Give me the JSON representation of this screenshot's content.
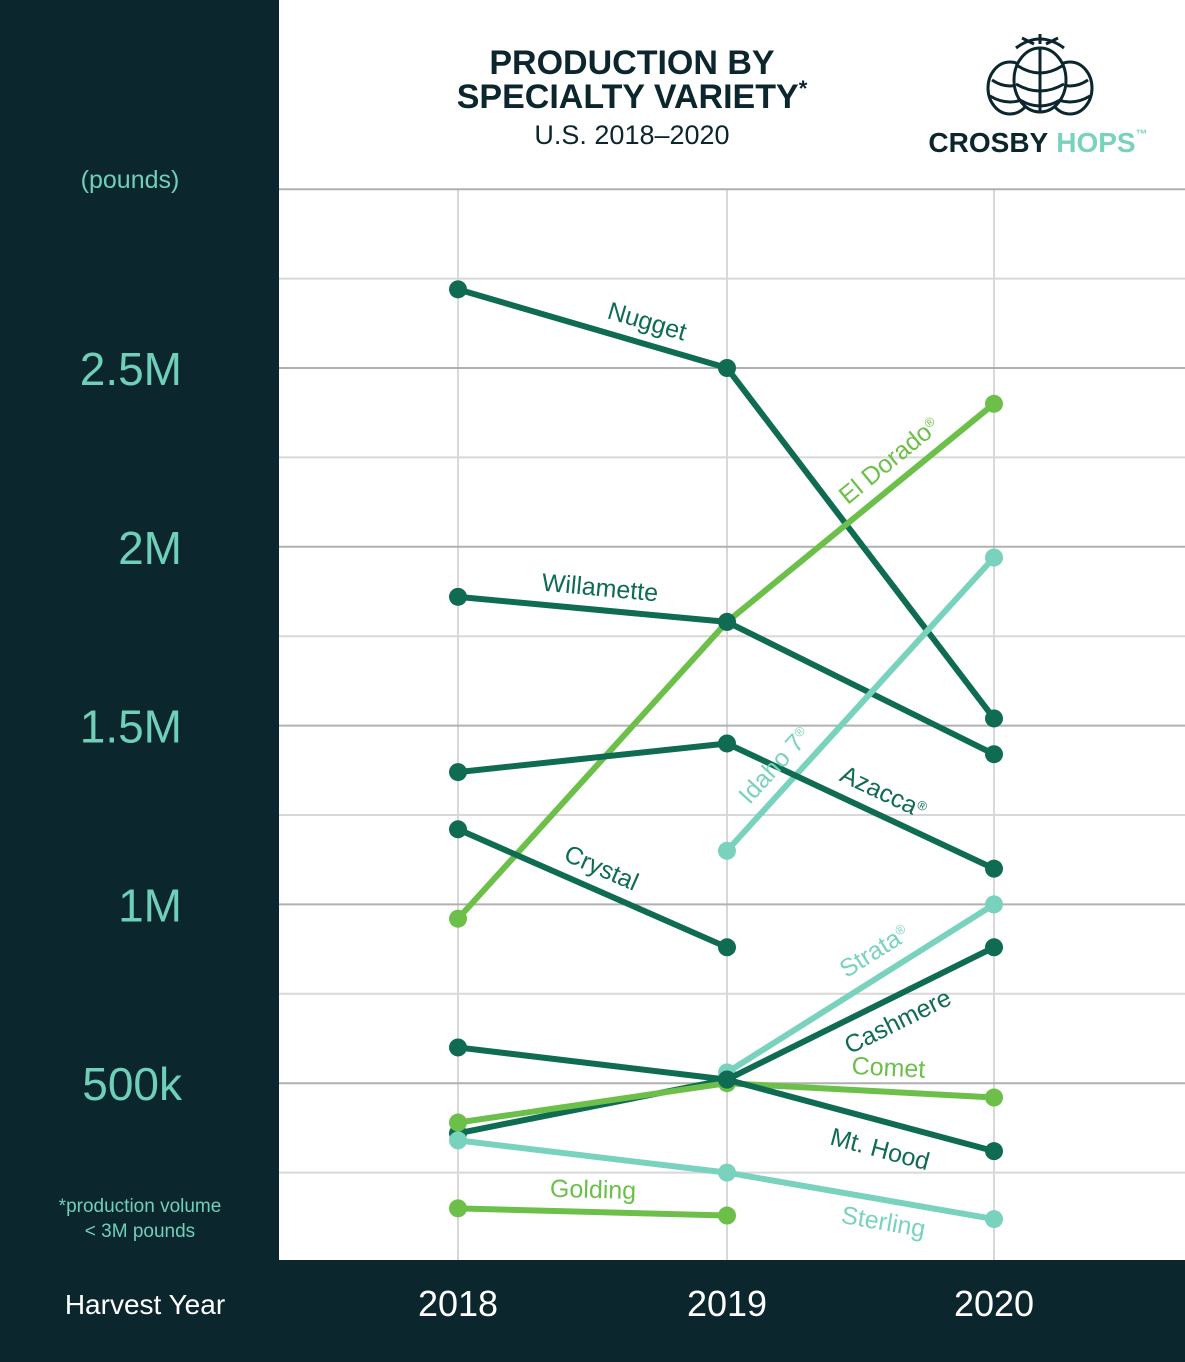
{
  "title_line1": "PRODUCTION BY",
  "title_line2": "SPECIALTY VARIETY",
  "title_asterisk": "*",
  "subtitle": "U.S. 2018–2020",
  "logo": {
    "word1": "CROSBY",
    "word2": "HOPS",
    "tm": "™",
    "icon": "hop-cones-icon"
  },
  "footnote_line1": "*production volume",
  "footnote_line2": "< 3M pounds",
  "colors": {
    "panel": "#0b262d",
    "axis_text": "#6fcfb8",
    "dark_green": "#0f6b52",
    "light_green": "#6cc04a",
    "teal": "#79d2be",
    "grid": "#d8d8d8",
    "major_grid": "#b0b0b0"
  },
  "chart_data": {
    "type": "line",
    "ylabel": "(pounds)",
    "xlabel": "Harvest Year",
    "x": [
      "2018",
      "2019",
      "2020"
    ],
    "ylim": [
      0,
      3000000
    ],
    "y_ticks": [
      {
        "value": 500000,
        "label": "500k"
      },
      {
        "value": 1000000,
        "label": "1M"
      },
      {
        "value": 1500000,
        "label": "1.5M"
      },
      {
        "value": 2000000,
        "label": "2M"
      },
      {
        "value": 2500000,
        "label": "2.5M"
      }
    ],
    "series": [
      {
        "name": "Nugget",
        "color": "dark_green",
        "values": [
          2720000,
          2500000,
          1520000
        ]
      },
      {
        "name": "El Dorado",
        "mark": "®",
        "color": "light_green",
        "values": [
          960000,
          1790000,
          2400000
        ]
      },
      {
        "name": "Willamette",
        "color": "dark_green",
        "values": [
          1860000,
          1790000,
          1420000
        ]
      },
      {
        "name": "Idaho 7",
        "mark": "®",
        "color": "teal",
        "values": [
          null,
          1150000,
          1970000
        ]
      },
      {
        "name": "Azacca",
        "mark": "®",
        "color": "dark_green",
        "values": [
          1370000,
          1450000,
          1100000
        ]
      },
      {
        "name": "Crystal",
        "color": "dark_green",
        "values": [
          1210000,
          880000,
          null
        ]
      },
      {
        "name": "Strata",
        "mark": "®",
        "color": "teal",
        "values": [
          null,
          530000,
          1000000
        ]
      },
      {
        "name": "Cashmere",
        "color": "dark_green",
        "values": [
          360000,
          510000,
          880000
        ]
      },
      {
        "name": "Comet",
        "color": "light_green",
        "values": [
          390000,
          500000,
          460000
        ]
      },
      {
        "name": "Mt. Hood",
        "color": "dark_green",
        "values": [
          600000,
          510000,
          310000
        ]
      },
      {
        "name": "Sterling",
        "color": "teal",
        "values": [
          340000,
          250000,
          120000
        ]
      },
      {
        "name": "Golding",
        "color": "light_green",
        "values": [
          150000,
          130000,
          null
        ]
      }
    ]
  }
}
